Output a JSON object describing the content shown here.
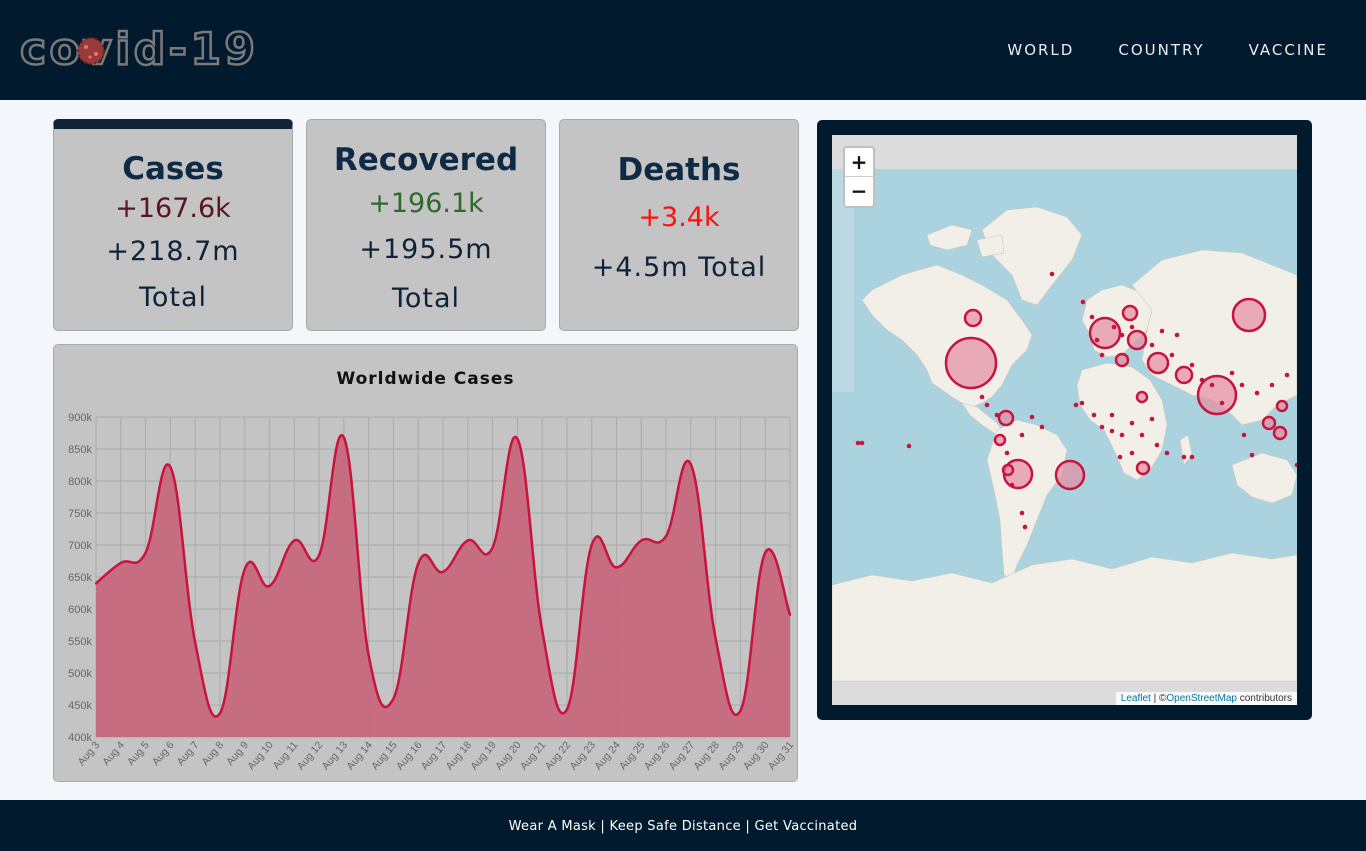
{
  "header": {
    "logo_text": "covid-19",
    "nav": [
      {
        "label": "WORLD"
      },
      {
        "label": "COUNTRY"
      },
      {
        "label": "VACCINE"
      }
    ]
  },
  "stats": {
    "cases": {
      "title": "Cases",
      "delta": "+167.6k",
      "total_line1": "+218.7m",
      "total_line2": "Total"
    },
    "recovered": {
      "title": "Recovered",
      "delta": "+196.1k",
      "total_line1": "+195.5m",
      "total_line2": "Total"
    },
    "deaths": {
      "title": "Deaths",
      "delta": "+3.4k",
      "total": "+4.5m Total"
    }
  },
  "chart_data": {
    "type": "area",
    "title": "Worldwide Cases",
    "categories": [
      "Aug 3",
      "Aug 4",
      "Aug 5",
      "Aug 6",
      "Aug 7",
      "Aug 8",
      "Aug 9",
      "Aug 10",
      "Aug 11",
      "Aug 12",
      "Aug 13",
      "Aug 14",
      "Aug 15",
      "Aug 16",
      "Aug 17",
      "Aug 18",
      "Aug 19",
      "Aug 20",
      "Aug 21",
      "Aug 22",
      "Aug 23",
      "Aug 24",
      "Aug 25",
      "Aug 26",
      "Aug 27",
      "Aug 28",
      "Aug 29",
      "Aug 30",
      "Aug 31"
    ],
    "values": [
      640000,
      672000,
      688000,
      822000,
      548000,
      437000,
      662000,
      636000,
      707000,
      684000,
      868000,
      528000,
      460000,
      671000,
      658000,
      707000,
      696000,
      866000,
      567000,
      443000,
      700000,
      665000,
      707000,
      714000,
      826000,
      554000,
      441000,
      688000,
      591000
    ],
    "ylim": [
      400000,
      900000
    ],
    "yticks": [
      "400k",
      "450k",
      "500k",
      "550k",
      "600k",
      "650k",
      "700k",
      "750k",
      "800k",
      "850k",
      "900k"
    ],
    "grid": true,
    "colors": {
      "line": "#c8143c",
      "fill": "#c8647a"
    }
  },
  "map": {
    "zoom_in": "+",
    "zoom_out": "−",
    "attribution_leaflet": "Leaflet",
    "attribution_sep": " | ©",
    "attribution_osm": "OpenStreetMap",
    "attribution_tail": " contributors"
  },
  "footer": {
    "text": "Wear A Mask | Keep Safe Distance | Get Vaccinated"
  },
  "colors": {
    "nav_bg": "#011a2e",
    "card_bg": "#c4c4c4",
    "circle": "#c8143c"
  }
}
